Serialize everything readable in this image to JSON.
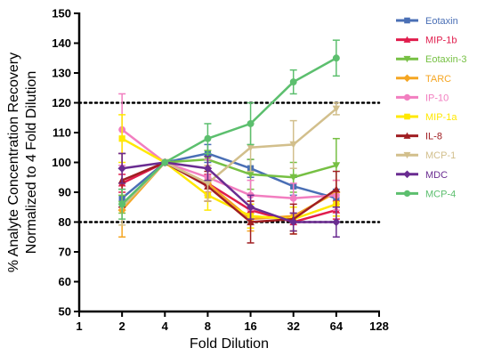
{
  "chart_data": {
    "type": "line",
    "xlabel": "Fold  Dilution",
    "ylabel": "% Analyte Concentration Recovery",
    "ylabel2": "Normalized to 4 Fold Dilution",
    "x_scale": "log2",
    "xlim": [
      1,
      128
    ],
    "ylim": [
      50,
      150
    ],
    "x_ticks": [
      1,
      2,
      4,
      8,
      16,
      32,
      64,
      128
    ],
    "y_ticks": [
      50,
      60,
      70,
      80,
      90,
      100,
      110,
      120,
      130,
      140,
      150
    ],
    "reference_lines": [
      80,
      120
    ],
    "legend_position": "right",
    "x": [
      2,
      4,
      8,
      16,
      32,
      64
    ],
    "series": [
      {
        "name": "Eotaxin",
        "color": "#4a6fb5",
        "marker": "square",
        "values": [
          88,
          100,
          103,
          98,
          92,
          88
        ],
        "err": [
          3,
          0,
          3,
          3,
          3,
          3
        ]
      },
      {
        "name": "MIP-1b",
        "color": "#e01c4c",
        "marker": "triangle-up",
        "values": [
          93,
          100,
          93,
          84,
          80,
          84
        ],
        "err": [
          3,
          0,
          3,
          3,
          3,
          3
        ]
      },
      {
        "name": "Eotaxin-3",
        "color": "#76c043",
        "marker": "triangle-down",
        "values": [
          86,
          100,
          101,
          96,
          95,
          99
        ],
        "err": [
          3,
          0,
          3,
          5,
          5,
          9
        ]
      },
      {
        "name": "TARC",
        "color": "#f5a623",
        "marker": "diamond",
        "values": [
          84,
          100,
          93,
          81,
          82,
          90
        ],
        "err": [
          9,
          0,
          6,
          4,
          6,
          4
        ]
      },
      {
        "name": "IP-10",
        "color": "#f27ec0",
        "marker": "circle",
        "values": [
          111,
          100,
          95,
          89,
          88,
          89
        ],
        "err": [
          12,
          0,
          6,
          5,
          5,
          5
        ]
      },
      {
        "name": "MIP-1a",
        "color": "#ffe800",
        "marker": "square",
        "values": [
          108,
          100,
          89,
          82,
          81,
          86
        ],
        "err": [
          8,
          0,
          5,
          4,
          4,
          4
        ]
      },
      {
        "name": "IL-8",
        "color": "#a01e22",
        "marker": "triangle-up",
        "values": [
          94,
          100,
          92,
          80,
          81,
          91
        ],
        "err": [
          9,
          0,
          5,
          7,
          5,
          6
        ]
      },
      {
        "name": "MCP-1",
        "color": "#d2bf8c",
        "marker": "triangle-down",
        "values": [
          85,
          100,
          93,
          105,
          106,
          118
        ],
        "err": [
          6,
          0,
          6,
          8,
          8,
          2
        ]
      },
      {
        "name": "MDC",
        "color": "#6a2c91",
        "marker": "diamond",
        "values": [
          98,
          100,
          98,
          85,
          80,
          80
        ],
        "err": [
          5,
          0,
          4,
          4,
          3,
          5
        ]
      },
      {
        "name": "MCP-4",
        "color": "#5cbf6e",
        "marker": "circle",
        "values": [
          86,
          100,
          108,
          113,
          127,
          135
        ],
        "err": [
          5,
          0,
          5,
          7,
          4,
          6
        ]
      }
    ]
  }
}
